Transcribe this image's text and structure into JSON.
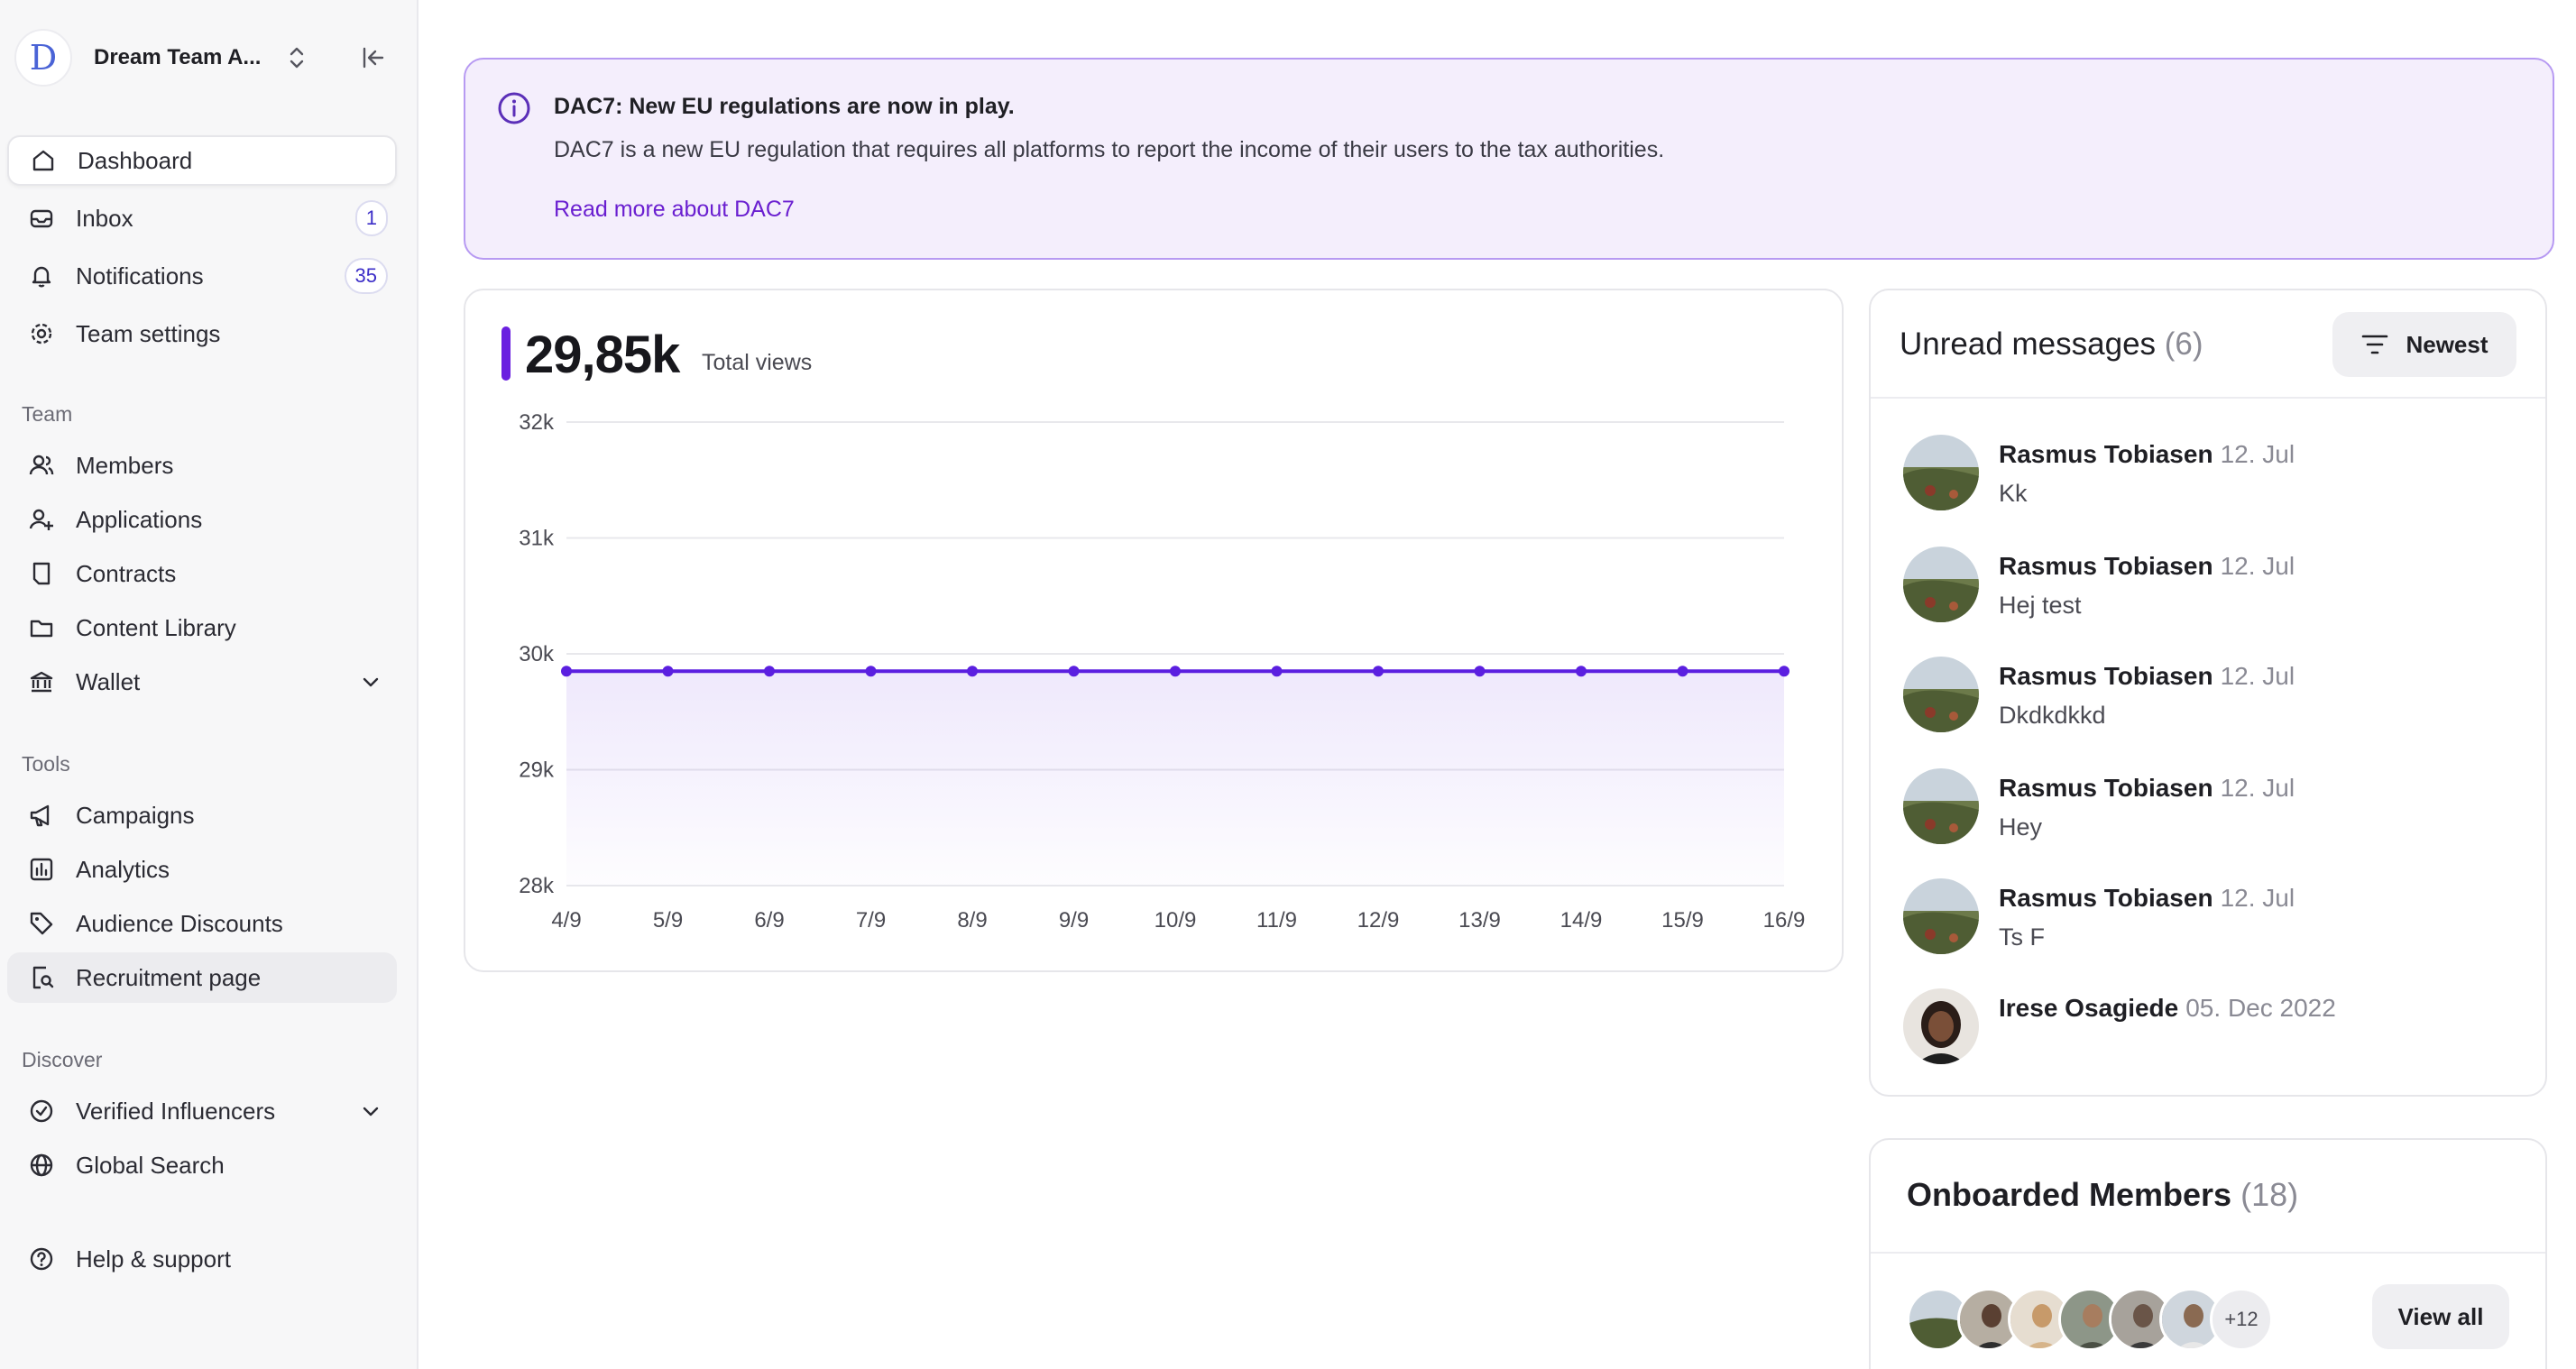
{
  "workspace": {
    "name": "Dream Team A...",
    "logo_letter": "D"
  },
  "nav": {
    "dashboard": "Dashboard",
    "inbox": "Inbox",
    "inbox_count": "1",
    "notifications": "Notifications",
    "notifications_count": "35",
    "team_settings": "Team settings"
  },
  "sections": {
    "team": "Team",
    "tools": "Tools",
    "discover": "Discover"
  },
  "team_items": {
    "members": "Members",
    "applications": "Applications",
    "contracts": "Contracts",
    "content_library": "Content Library",
    "wallet": "Wallet"
  },
  "tools_items": {
    "campaigns": "Campaigns",
    "analytics": "Analytics",
    "audience_discounts": "Audience Discounts",
    "recruitment_page": "Recruitment page"
  },
  "discover_items": {
    "verified_influencers": "Verified Influencers",
    "global_search": "Global Search"
  },
  "help": "Help & support",
  "banner": {
    "title": "DAC7: New EU regulations are now in play.",
    "text": "DAC7 is a new EU regulation that requires all platforms to report the income of their users to the tax authorities.",
    "link": "Read more about DAC7"
  },
  "stats": {
    "total_value": "29,85k",
    "total_label": "Total views"
  },
  "chart_data": {
    "type": "area",
    "title": "",
    "xlabel": "",
    "ylabel": "",
    "x": [
      "4/9",
      "5/9",
      "6/9",
      "7/9",
      "8/9",
      "9/9",
      "10/9",
      "11/9",
      "12/9",
      "13/9",
      "14/9",
      "15/9",
      "16/9"
    ],
    "series": [
      {
        "values": [
          29850,
          29850,
          29850,
          29850,
          29850,
          29850,
          29850,
          29850,
          29850,
          29850,
          29850,
          29850,
          29850
        ]
      }
    ],
    "ylim": [
      28000,
      32000
    ],
    "yticks": [
      32000,
      31000,
      30000,
      29000,
      28000
    ],
    "ytick_labels": [
      "32k",
      "31k",
      "30k",
      "29k",
      "28k"
    ],
    "grid": true,
    "color": "#5b1fe0"
  },
  "unread": {
    "title": "Unread messages",
    "count": "(6)",
    "sort_label": "Newest",
    "messages": [
      {
        "name": "Rasmus Tobiasen",
        "date": "12. Jul",
        "text": "Kk"
      },
      {
        "name": "Rasmus Tobiasen",
        "date": "12. Jul",
        "text": "Hej test"
      },
      {
        "name": "Rasmus Tobiasen",
        "date": "12. Jul",
        "text": "Dkdkdkkd"
      },
      {
        "name": "Rasmus Tobiasen",
        "date": "12. Jul",
        "text": "Hey"
      },
      {
        "name": "Rasmus Tobiasen",
        "date": "12. Jul",
        "text": "Ts F"
      },
      {
        "name": "Irese Osagiede",
        "date": "05. Dec 2022",
        "text": ""
      }
    ]
  },
  "onboarded": {
    "title": "Onboarded Members",
    "count": "(18)",
    "more": "+12",
    "view_all": "View all"
  }
}
